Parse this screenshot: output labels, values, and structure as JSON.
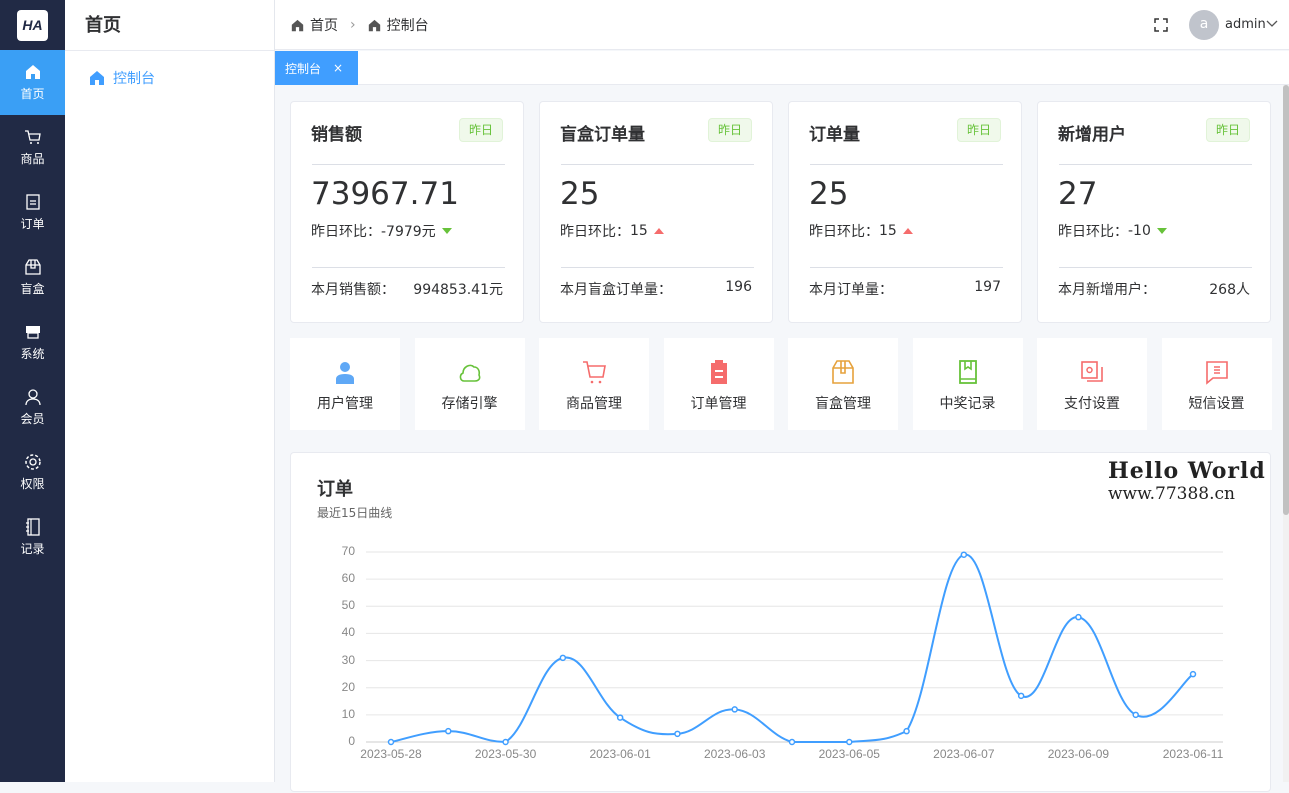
{
  "sidebar": {
    "logo": "HA",
    "items": [
      {
        "label": "首页",
        "icon": "home-icon"
      },
      {
        "label": "商品",
        "icon": "cart-icon"
      },
      {
        "label": "订单",
        "icon": "document-icon"
      },
      {
        "label": "盲盒",
        "icon": "box-icon"
      },
      {
        "label": "系统",
        "icon": "shop-icon"
      },
      {
        "label": "会员",
        "icon": "user-icon"
      },
      {
        "label": "权限",
        "icon": "gear-icon"
      },
      {
        "label": "记录",
        "icon": "notebook-icon"
      }
    ],
    "active": 0
  },
  "menu": {
    "title": "首页",
    "items": [
      {
        "label": "控制台"
      }
    ]
  },
  "header": {
    "breadcrumb": [
      "首页",
      "控制台"
    ],
    "user": "admin",
    "avatar": "a"
  },
  "tabs": [
    {
      "label": "控制台",
      "close": "×"
    }
  ],
  "stats": [
    {
      "title": "销售额",
      "tag": "昨日",
      "value": "73967.71",
      "compare_label": "昨日环比：",
      "compare": "-7979元",
      "trend": "down",
      "month_label": "本月销售额：",
      "month_value": "994853.41元"
    },
    {
      "title": "盲盒订单量",
      "tag": "昨日",
      "value": "25",
      "compare_label": "昨日环比：",
      "compare": "15",
      "trend": "up",
      "month_label": "本月盲盒订单量：",
      "month_value": "196"
    },
    {
      "title": "订单量",
      "tag": "昨日",
      "value": "25",
      "compare_label": "昨日环比：",
      "compare": "15",
      "trend": "up",
      "month_label": "本月订单量：",
      "month_value": "197"
    },
    {
      "title": "新增用户",
      "tag": "昨日",
      "value": "27",
      "compare_label": "昨日环比：",
      "compare": "-10",
      "trend": "down",
      "month_label": "本月新增用户：",
      "month_value": "268人"
    }
  ],
  "quick": [
    {
      "label": "用户管理",
      "color": "#5fa8f6"
    },
    {
      "label": "存储引擎",
      "color": "#67c23a"
    },
    {
      "label": "商品管理",
      "color": "#f56c6c"
    },
    {
      "label": "订单管理",
      "color": "#f56c6c"
    },
    {
      "label": "盲盒管理",
      "color": "#e6a23c"
    },
    {
      "label": "中奖记录",
      "color": "#67c23a"
    },
    {
      "label": "支付设置",
      "color": "#f56c6c"
    },
    {
      "label": "短信设置",
      "color": "#f56c6c"
    }
  ],
  "chart_data": {
    "type": "line",
    "title": "订单",
    "subtitle": "最近15日曲线",
    "smooth": true,
    "color": "#409eff",
    "x": [
      "2023-05-28",
      "2023-05-29",
      "2023-05-30",
      "2023-05-31",
      "2023-06-01",
      "2023-06-02",
      "2023-06-03",
      "2023-06-04",
      "2023-06-05",
      "2023-06-06",
      "2023-06-07",
      "2023-06-08",
      "2023-06-09",
      "2023-06-10",
      "2023-06-11"
    ],
    "values": [
      0,
      4,
      0,
      31,
      9,
      3,
      12,
      0,
      0,
      4,
      69,
      17,
      46,
      10,
      25
    ],
    "xtick_labels": [
      "2023-05-28",
      "2023-05-30",
      "2023-06-01",
      "2023-06-03",
      "2023-06-05",
      "2023-06-07",
      "2023-06-09",
      "2023-06-11"
    ],
    "yticks": [
      0,
      10,
      20,
      30,
      40,
      50,
      60,
      70
    ],
    "ylim": [
      0,
      70
    ],
    "grid": true
  },
  "watermark": {
    "line1": "Hello World",
    "line2": "www.77388.cn"
  }
}
